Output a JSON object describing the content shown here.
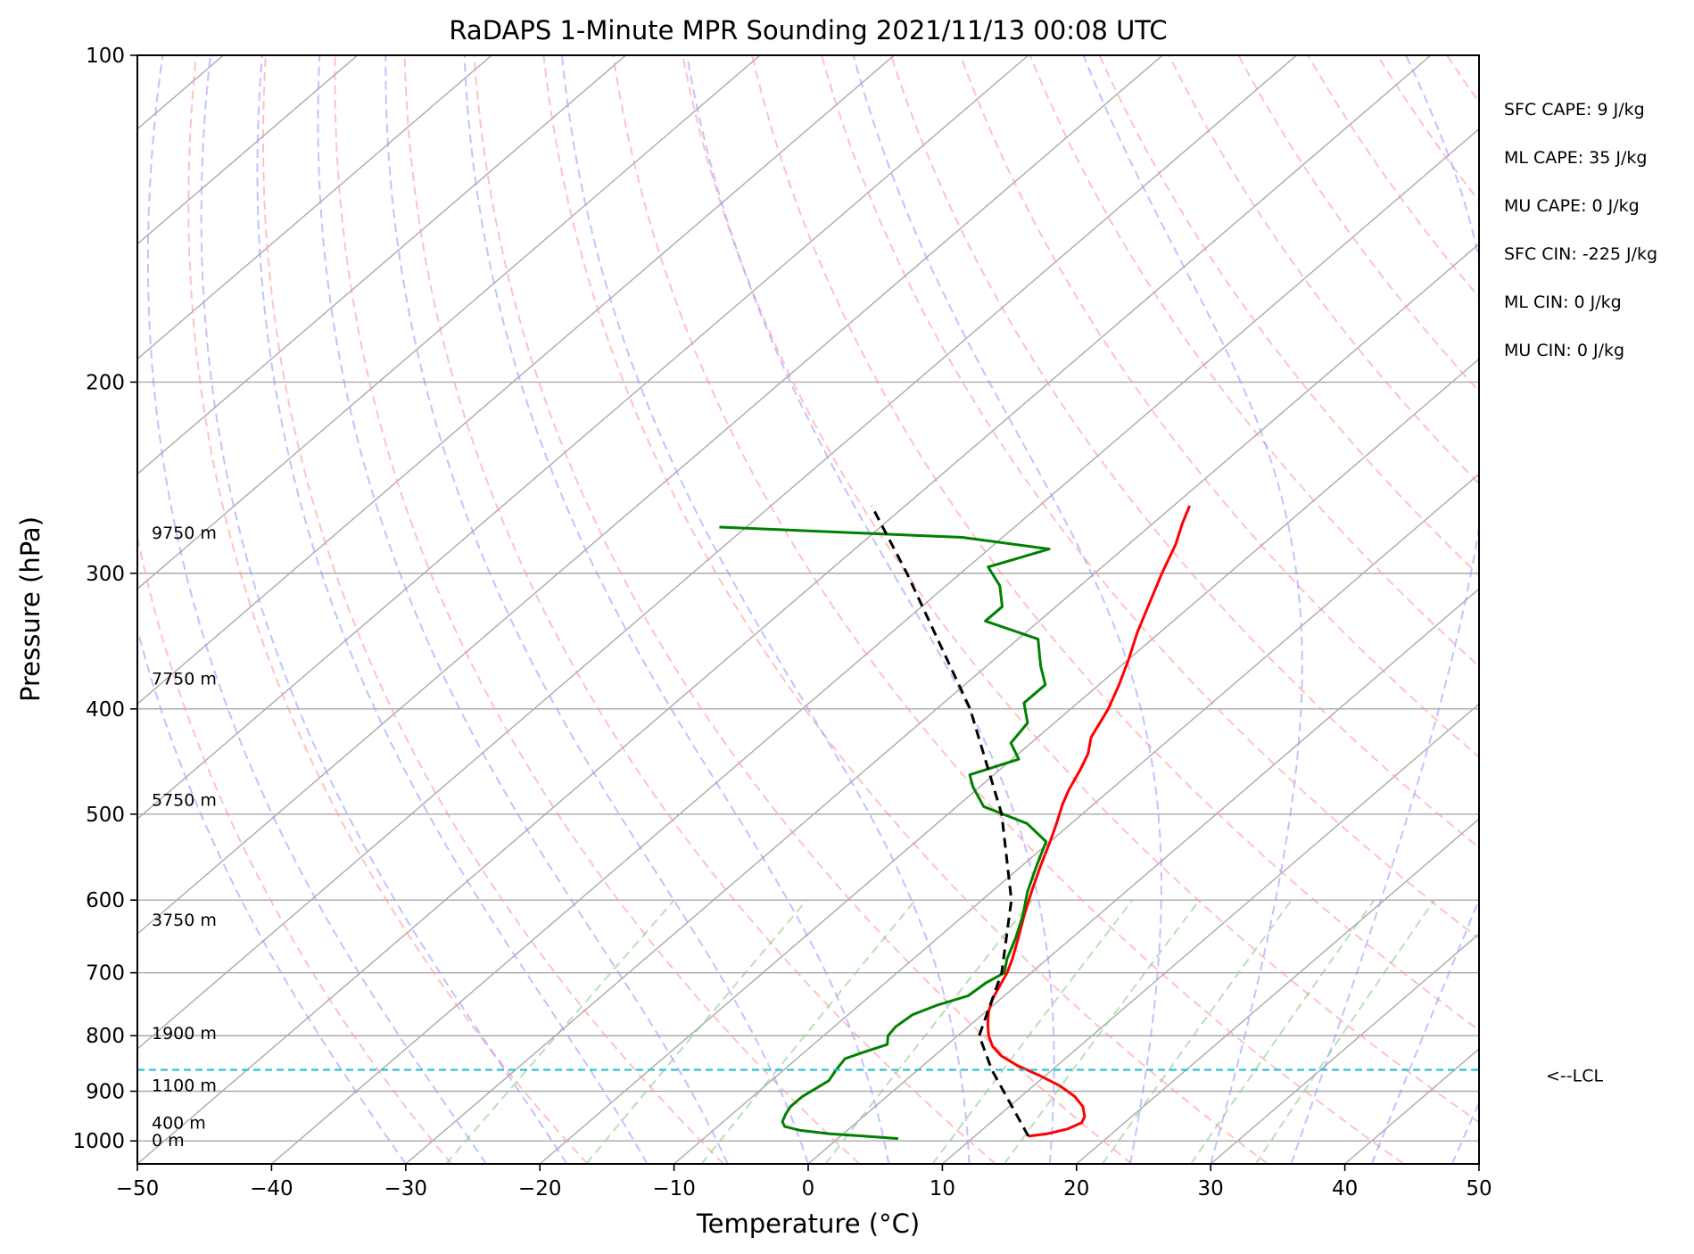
{
  "chart_data": {
    "type": "line",
    "title": "RaDAPS 1-Minute MPR Sounding 2021/11/13 00:08 UTC",
    "xlabel": "Temperature (°C)",
    "ylabel": "Pressure (hPa)",
    "xlim": [
      -50,
      50
    ],
    "ylim": [
      1050,
      100
    ],
    "y_scale": "log",
    "skew": "skew-T",
    "grid": true,
    "x_ticks": [
      -50,
      -40,
      -30,
      -20,
      -10,
      0,
      10,
      20,
      30,
      40,
      50
    ],
    "x_tick_labels": [
      "−50",
      "−40",
      "−30",
      "−20",
      "−10",
      "0",
      "10",
      "20",
      "30",
      "40",
      "50"
    ],
    "y_ticks": [
      100,
      200,
      300,
      400,
      500,
      600,
      700,
      800,
      900,
      1000
    ],
    "y_tick_labels": [
      "100",
      "200",
      "300",
      "400",
      "500",
      "600",
      "700",
      "800",
      "900",
      "1000"
    ],
    "series": [
      {
        "color": "#ff0000",
        "points": [
          {
            "p": 990,
            "t": 14.0
          },
          {
            "p": 985,
            "t": 15.2
          },
          {
            "p": 975,
            "t": 16.3
          },
          {
            "p": 962,
            "t": 16.8
          },
          {
            "p": 950,
            "t": 16.5
          },
          {
            "p": 930,
            "t": 15.5
          },
          {
            "p": 910,
            "t": 14.0
          },
          {
            "p": 890,
            "t": 12.0
          },
          {
            "p": 870,
            "t": 9.5
          },
          {
            "p": 852,
            "t": 7.0
          },
          {
            "p": 835,
            "t": 5.0
          },
          {
            "p": 818,
            "t": 3.5
          },
          {
            "p": 800,
            "t": 2.3
          },
          {
            "p": 780,
            "t": 1.2
          },
          {
            "p": 760,
            "t": 0.2
          },
          {
            "p": 740,
            "t": -0.6
          },
          {
            "p": 720,
            "t": -1.2
          },
          {
            "p": 700,
            "t": -1.8
          },
          {
            "p": 680,
            "t": -2.6
          },
          {
            "p": 650,
            "t": -4.0
          },
          {
            "p": 620,
            "t": -5.5
          },
          {
            "p": 590,
            "t": -7.0
          },
          {
            "p": 560,
            "t": -8.5
          },
          {
            "p": 530,
            "t": -10.0
          },
          {
            "p": 510,
            "t": -11.1
          },
          {
            "p": 490,
            "t": -12.3
          },
          {
            "p": 475,
            "t": -13.1
          },
          {
            "p": 455,
            "t": -14.0
          },
          {
            "p": 440,
            "t": -14.8
          },
          {
            "p": 425,
            "t": -16.0
          },
          {
            "p": 400,
            "t": -17.2
          },
          {
            "p": 380,
            "t": -18.5
          },
          {
            "p": 360,
            "t": -20.0
          },
          {
            "p": 340,
            "t": -21.7
          },
          {
            "p": 320,
            "t": -23.3
          },
          {
            "p": 300,
            "t": -25.0
          },
          {
            "p": 282,
            "t": -26.5
          },
          {
            "p": 270,
            "t": -27.8
          },
          {
            "p": 260,
            "t": -28.8
          }
        ]
      },
      {
        "color": "#008000",
        "points": [
          {
            "p": 995,
            "t": 4.5
          },
          {
            "p": 990,
            "t": 1.8
          },
          {
            "p": 985,
            "t": -1.0
          },
          {
            "p": 978,
            "t": -3.5
          },
          {
            "p": 970,
            "t": -5.0
          },
          {
            "p": 960,
            "t": -5.6
          },
          {
            "p": 945,
            "t": -6.0
          },
          {
            "p": 930,
            "t": -6.3
          },
          {
            "p": 910,
            "t": -6.3
          },
          {
            "p": 895,
            "t": -6.0
          },
          {
            "p": 880,
            "t": -5.7
          },
          {
            "p": 860,
            "t": -6.1
          },
          {
            "p": 840,
            "t": -6.4
          },
          {
            "p": 830,
            "t": -5.7
          },
          {
            "p": 815,
            "t": -4.5
          },
          {
            "p": 800,
            "t": -5.2
          },
          {
            "p": 785,
            "t": -5.4
          },
          {
            "p": 765,
            "t": -5.2
          },
          {
            "p": 750,
            "t": -4.2
          },
          {
            "p": 735,
            "t": -2.7
          },
          {
            "p": 715,
            "t": -2.5
          },
          {
            "p": 700,
            "t": -2.0
          },
          {
            "p": 680,
            "t": -3.0
          },
          {
            "p": 650,
            "t": -4.2
          },
          {
            "p": 620,
            "t": -5.6
          },
          {
            "p": 590,
            "t": -7.3
          },
          {
            "p": 560,
            "t": -8.8
          },
          {
            "p": 530,
            "t": -10.3
          },
          {
            "p": 510,
            "t": -13.3
          },
          {
            "p": 492,
            "t": -18.0
          },
          {
            "p": 472,
            "t": -20.5
          },
          {
            "p": 460,
            "t": -21.8
          },
          {
            "p": 445,
            "t": -19.5
          },
          {
            "p": 430,
            "t": -21.5
          },
          {
            "p": 412,
            "t": -22.0
          },
          {
            "p": 395,
            "t": -24.0
          },
          {
            "p": 380,
            "t": -24.0
          },
          {
            "p": 365,
            "t": -26.0
          },
          {
            "p": 345,
            "t": -28.5
          },
          {
            "p": 332,
            "t": -34.0
          },
          {
            "p": 322,
            "t": -34.0
          },
          {
            "p": 308,
            "t": -36.0
          },
          {
            "p": 296,
            "t": -38.5
          },
          {
            "p": 285,
            "t": -35.5
          },
          {
            "p": 278,
            "t": -43.0
          },
          {
            "p": 272,
            "t": -62.0
          }
        ]
      },
      {
        "color": "#000000",
        "dashed": true,
        "points": [
          {
            "p": 990,
            "t": 14.0
          },
          {
            "p": 860,
            "t": 5.5
          },
          {
            "p": 800,
            "t": 1.6
          },
          {
            "p": 700,
            "t": -2.2
          },
          {
            "p": 600,
            "t": -7.8
          },
          {
            "p": 500,
            "t": -16.0
          },
          {
            "p": 400,
            "t": -27.5
          },
          {
            "p": 300,
            "t": -44.0
          },
          {
            "p": 260,
            "t": -52.5
          }
        ]
      }
    ],
    "lcl_hpa": 860,
    "lcl_label": "<--LCL",
    "height_labels": [
      {
        "text": "9750 m",
        "p": 275
      },
      {
        "text": "7750 m",
        "p": 375
      },
      {
        "text": "5750 m",
        "p": 485
      },
      {
        "text": "3750 m",
        "p": 625
      },
      {
        "text": "1900 m",
        "p": 795
      },
      {
        "text": "1100 m",
        "p": 888
      },
      {
        "text": "400 m",
        "p": 962
      },
      {
        "text": "0 m",
        "p": 998
      }
    ],
    "stats": [
      "SFC CAPE: 9 J/kg",
      "ML CAPE: 35 J/kg",
      "MU CAPE: 0 J/kg",
      "SFC CIN: -225 J/kg",
      "ML CIN: 0 J/kg",
      "MU CIN: 0 J/kg"
    ],
    "colors": {
      "isotherm": "#aaaaaa",
      "dry_adiabat": "#ff9999",
      "moist_adiabat": "#9999ff",
      "mixing_ratio": "#88cc88",
      "lcl_line": "#17becf"
    }
  }
}
